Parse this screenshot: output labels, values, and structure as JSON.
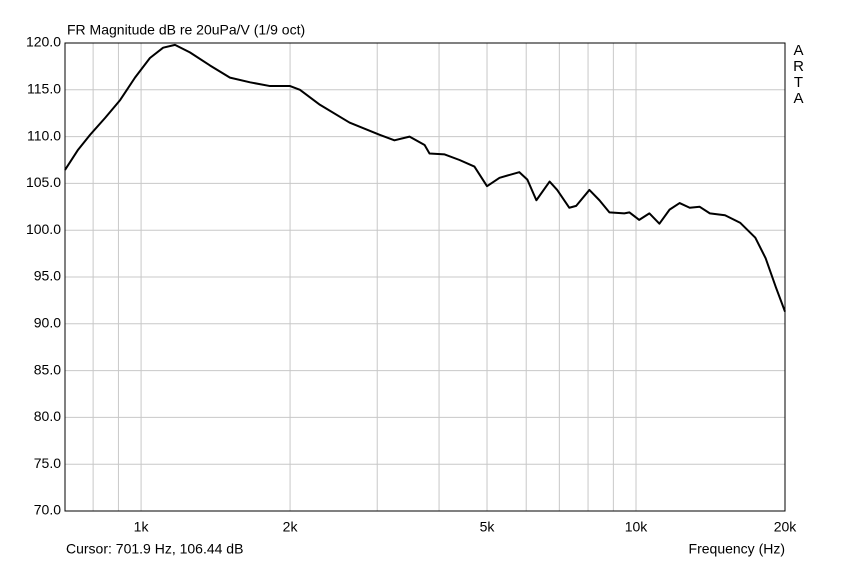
{
  "chart_data": {
    "type": "line",
    "title": "FR Magnitude dB re 20uPa/V (1/9 oct)",
    "cursor": "Cursor: 701.9 Hz, 106.44 dB",
    "x_label": "Frequency (Hz)",
    "watermark": "ARTA",
    "xscale": "log",
    "grid": true,
    "xlim": [
      701.9,
      20000
    ],
    "ylim": [
      70,
      120
    ],
    "xticks": [
      {
        "value": 800,
        "label": null
      },
      {
        "value": 900,
        "label": null
      },
      {
        "value": 1000,
        "label": "1k"
      },
      {
        "value": 2000,
        "label": "2k"
      },
      {
        "value": 3000,
        "label": null
      },
      {
        "value": 4000,
        "label": null
      },
      {
        "value": 5000,
        "label": "5k"
      },
      {
        "value": 6000,
        "label": null
      },
      {
        "value": 7000,
        "label": null
      },
      {
        "value": 8000,
        "label": null
      },
      {
        "value": 9000,
        "label": null
      },
      {
        "value": 10000,
        "label": "10k"
      },
      {
        "value": 20000,
        "label": "20k"
      }
    ],
    "yticks": [
      {
        "value": 70,
        "label": "70.0"
      },
      {
        "value": 75,
        "label": "75.0"
      },
      {
        "value": 80,
        "label": "80.0"
      },
      {
        "value": 85,
        "label": "85.0"
      },
      {
        "value": 90,
        "label": "90.0"
      },
      {
        "value": 95,
        "label": "95.0"
      },
      {
        "value": 100,
        "label": "100.0"
      },
      {
        "value": 105,
        "label": "105.0"
      },
      {
        "value": 110,
        "label": "110.0"
      },
      {
        "value": 115,
        "label": "115.0"
      },
      {
        "value": 120,
        "label": "120.0"
      }
    ],
    "x": [
      701.9,
      746,
      789,
      846,
      907,
      972,
      1042,
      1108,
      1171,
      1255,
      1378,
      1512,
      1660,
      1822,
      2000,
      2094,
      2298,
      2637,
      3030,
      3250,
      3487,
      3740,
      3826,
      4105,
      4400,
      4715,
      5000,
      5300,
      5809,
      6032,
      6290,
      6690,
      6930,
      7330,
      7570,
      8050,
      8435,
      8836,
      9470,
      9700,
      10150,
      10640,
      11150,
      11690,
      12250,
      12840,
      13450,
      14100,
      15130,
      16230,
      17420,
      18280,
      19170,
      20000
    ],
    "series": [
      {
        "color": "#000000",
        "values": [
          106.44,
          108.6,
          110.2,
          112.0,
          113.9,
          116.3,
          118.4,
          119.5,
          119.8,
          119.0,
          117.6,
          116.3,
          115.8,
          115.4,
          115.4,
          115.0,
          113.4,
          111.5,
          110.2,
          109.6,
          110.0,
          109.1,
          108.2,
          108.1,
          107.5,
          106.8,
          104.7,
          105.6,
          106.2,
          105.4,
          103.2,
          105.2,
          104.3,
          102.4,
          102.6,
          104.3,
          103.2,
          101.9,
          101.8,
          101.9,
          101.1,
          101.8,
          100.7,
          102.2,
          102.9,
          102.4,
          102.5,
          101.8,
          101.6,
          100.8,
          99.2,
          97.0,
          93.9,
          91.3
        ]
      }
    ]
  }
}
